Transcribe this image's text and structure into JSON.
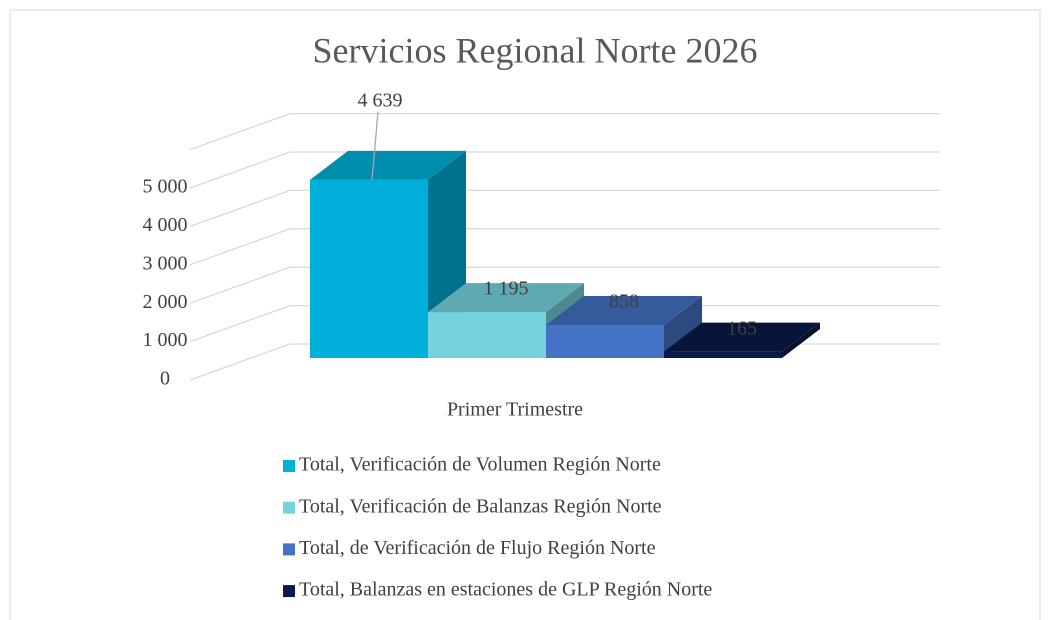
{
  "chart_data": {
    "type": "bar3d",
    "title": "Servicios Regional Norte 2026",
    "categories": [
      "Primer Trimestre"
    ],
    "series": [
      {
        "name": "Total, Verificación de Volumen Región Norte",
        "color": "#00b0da",
        "values": [
          4639
        ],
        "value_labels": [
          "4 639"
        ]
      },
      {
        "name": "Total, Verificación de Balanzas Región Norte",
        "color": "#76d3de",
        "values": [
          1195
        ],
        "value_labels": [
          "1 195"
        ]
      },
      {
        "name": "Total, de Verificación de Flujo Región Norte",
        "color": "#4472c4",
        "values": [
          858
        ],
        "value_labels": [
          "858"
        ]
      },
      {
        "name": "Total, Balanzas en estaciones de GLP Región Norte",
        "color": "#0a1a4a",
        "values": [
          165
        ],
        "value_labels": [
          "165"
        ]
      }
    ],
    "ylim": [
      0,
      6000
    ],
    "yticks": [
      0,
      {
        "value": 1000,
        "label": "1 000"
      },
      {
        "value": 2000,
        "label": "2 000"
      },
      {
        "value": 3000,
        "label": "3 000"
      },
      {
        "value": 4000,
        "label": "4 000"
      },
      {
        "value": 5000,
        "label": "5 000"
      }
    ],
    "grid": true,
    "legend": "bottom"
  }
}
